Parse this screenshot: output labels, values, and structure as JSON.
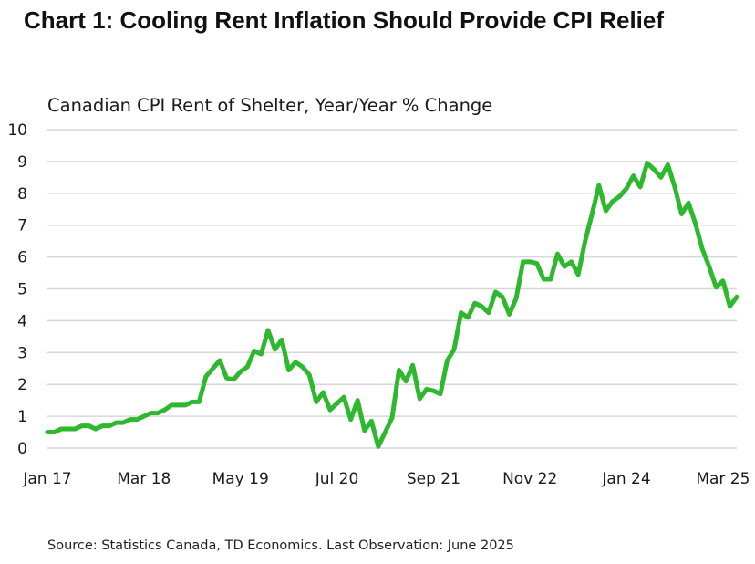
{
  "chart_data": {
    "type": "line",
    "title": "Chart 1: Cooling Rent Inflation Should Provide CPI Relief",
    "subtitle": "Canadian CPI Rent of Shelter, Year/Year % Change",
    "source": "Source: Statistics Canada, TD Economics. Last Observation: June 2025",
    "ylim": [
      0,
      10
    ],
    "yticks": [
      "0",
      "1",
      "2",
      "3",
      "4",
      "5",
      "6",
      "7",
      "8",
      "9",
      "10"
    ],
    "xticks": [
      {
        "label": "Jan 17",
        "index": 0
      },
      {
        "label": "Mar 18",
        "index": 14
      },
      {
        "label": "May 19",
        "index": 28
      },
      {
        "label": "Jul 20",
        "index": 42
      },
      {
        "label": "Sep 21",
        "index": 56
      },
      {
        "label": "Nov 22",
        "index": 70
      },
      {
        "label": "Jan 24",
        "index": 84
      },
      {
        "label": "Mar 25",
        "index": 98
      }
    ],
    "grid": true,
    "line_color": "#2db82d",
    "series": [
      {
        "name": "",
        "start": "2017-01",
        "values": [
          0.5,
          0.5,
          0.6,
          0.6,
          0.6,
          0.7,
          0.7,
          0.6,
          0.7,
          0.7,
          0.8,
          0.8,
          0.9,
          0.9,
          1.0,
          1.1,
          1.1,
          1.2,
          1.35,
          1.35,
          1.35,
          1.45,
          1.45,
          2.25,
          2.5,
          2.75,
          2.2,
          2.15,
          2.4,
          2.55,
          3.05,
          2.95,
          3.7,
          3.1,
          3.4,
          2.45,
          2.7,
          2.55,
          2.3,
          1.45,
          1.75,
          1.2,
          1.4,
          1.6,
          0.9,
          1.5,
          0.55,
          0.85,
          0.05,
          0.5,
          0.95,
          2.45,
          2.1,
          2.6,
          1.55,
          1.85,
          1.8,
          1.7,
          2.75,
          3.1,
          4.25,
          4.1,
          4.55,
          4.45,
          4.25,
          4.9,
          4.75,
          4.2,
          4.7,
          5.85,
          5.85,
          5.8,
          5.3,
          5.3,
          6.1,
          5.7,
          5.85,
          5.45,
          6.5,
          7.35,
          8.25,
          7.45,
          7.75,
          7.9,
          8.15,
          8.55,
          8.2,
          8.95,
          8.75,
          8.5,
          8.9,
          8.2,
          7.35,
          7.7,
          7.05,
          6.25,
          5.7,
          5.05,
          5.25,
          4.45,
          4.75
        ]
      }
    ]
  }
}
